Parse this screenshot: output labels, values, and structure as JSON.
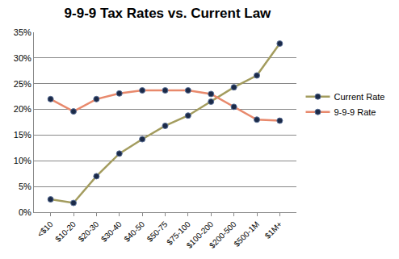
{
  "chart_data": {
    "type": "line",
    "title": "9-9-9 Tax Rates vs. Current Law",
    "categories": [
      "<$10",
      "$10-20",
      "$20-30",
      "$30-40",
      "$40-50",
      "$50-75",
      "$75-100",
      "$100-200",
      "$200-500",
      "$500-1M",
      "$1M+"
    ],
    "series": [
      {
        "name": "Current Rate",
        "color": "#a39c5e",
        "marker": "circle",
        "line_style": "solid",
        "values": [
          2.5,
          1.8,
          7.0,
          11.4,
          14.2,
          16.8,
          18.8,
          21.5,
          24.3,
          26.6,
          32.8
        ]
      },
      {
        "name": "9-9-9 Rate",
        "color": "#e8896c",
        "marker": "circle",
        "line_style": "solid",
        "values": [
          22.0,
          19.6,
          22.0,
          23.1,
          23.7,
          23.7,
          23.7,
          23.0,
          20.5,
          18.0,
          17.8
        ]
      }
    ],
    "ylim": [
      0,
      35
    ],
    "yticks": [
      {
        "value": 0,
        "label": "0%"
      },
      {
        "value": 5,
        "label": "5%"
      },
      {
        "value": 10,
        "label": "10%"
      },
      {
        "value": 15,
        "label": "15%"
      },
      {
        "value": 20,
        "label": "20%"
      },
      {
        "value": 25,
        "label": "25%"
      },
      {
        "value": 30,
        "label": "30%"
      },
      {
        "value": 35,
        "label": "35%"
      }
    ],
    "grid": true,
    "legend": "right"
  }
}
